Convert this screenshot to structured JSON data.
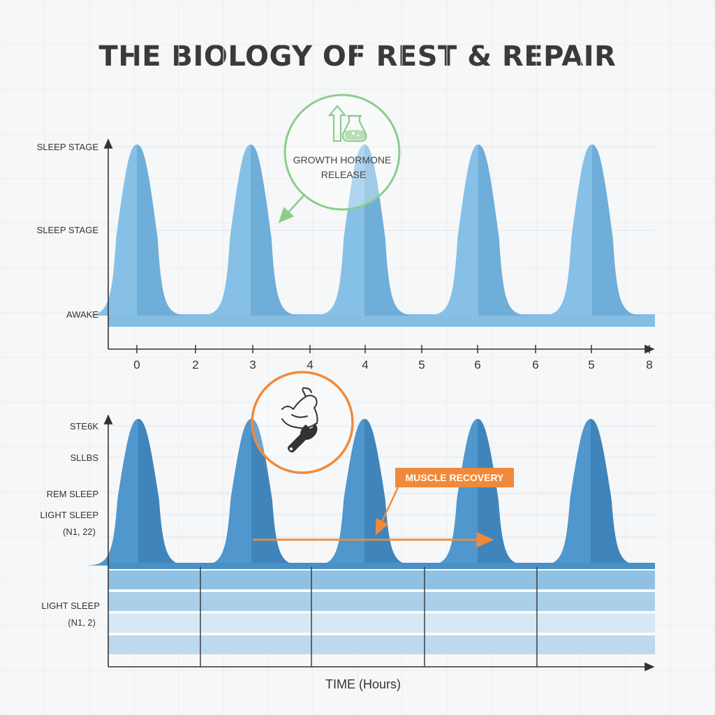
{
  "title": "THE BIOLOGY OF REST & REPAIR",
  "colors": {
    "top_wave": "#7fb8e0",
    "bottom_wave": "#4a90c4",
    "growth_hormone": "#8ccc8c",
    "muscle_recovery": "#f08a3a",
    "axis": "#333333",
    "grid": "#e2e5e8"
  },
  "chart_data": [
    {
      "type": "area",
      "y_tick_labels": [
        "SLEEP STAGE",
        "SLEEP STAGE",
        "AWAKE"
      ],
      "x_tick_labels": [
        "0",
        "2",
        "3",
        "4",
        "4",
        "5",
        "6",
        "6",
        "5",
        "8"
      ],
      "peak_count": 5,
      "annotation": {
        "label_lines": [
          "GROWTH HORMONE",
          "RELEASE"
        ],
        "icons": [
          "up-arrow-icon",
          "flask-icon"
        ],
        "color": "#8ccc8c"
      },
      "grid": true
    },
    {
      "type": "area",
      "y_tick_labels": [
        "STE6K",
        "SLLBS",
        "REM SLEEP",
        "LIGHT SLEEP",
        "(N1, 22)",
        "LIGHT SLEEP",
        "(N1, 2)"
      ],
      "peak_count": 5,
      "xlabel": "TIME (Hours)",
      "annotation": {
        "label": "MUSCLE RECOVERY",
        "icons": [
          "flexed-arm-icon",
          "wrench-icon"
        ],
        "color": "#f08a3a"
      },
      "grid": true
    }
  ]
}
